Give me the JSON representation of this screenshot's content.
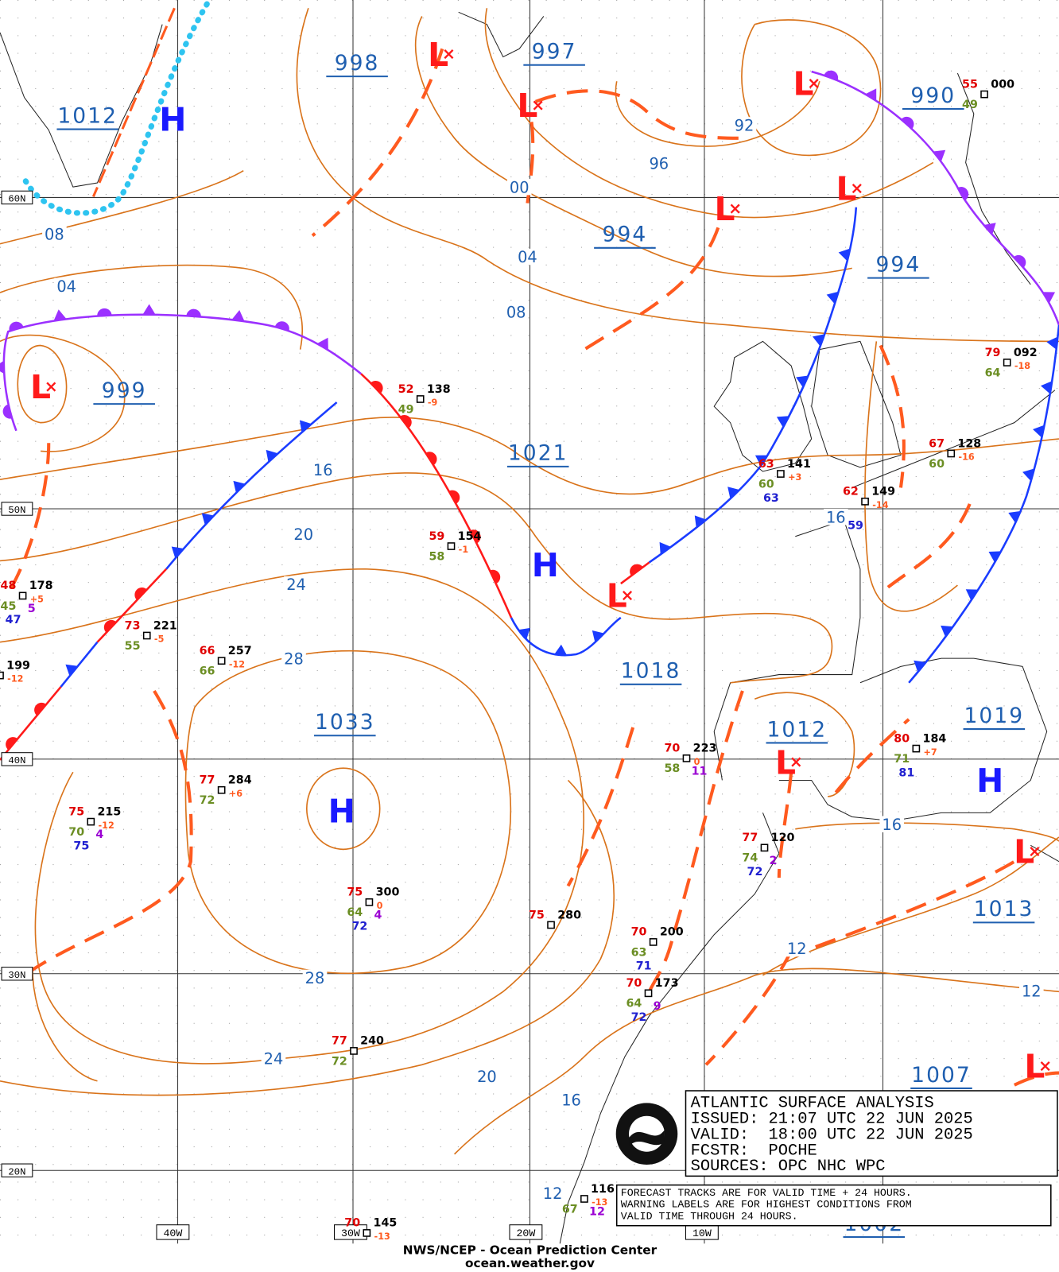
{
  "lat_labels": [
    "60N",
    "50N",
    "40N",
    "30N",
    "20N"
  ],
  "lon_labels": [
    "40W",
    "30W",
    "20W",
    "10W"
  ],
  "center_labels": [
    "1012",
    "998",
    "997",
    "990",
    "994",
    "994",
    "999",
    "1021",
    "1018",
    "1033",
    "1012",
    "1019",
    "1013",
    "1007",
    "1002"
  ],
  "symbols": [
    "H",
    "H",
    "H",
    "H",
    "L",
    "L",
    "L",
    "L",
    "L",
    "L",
    "L",
    "L",
    "L",
    "L"
  ],
  "isobar_labels": [
    "08",
    "04",
    "00",
    "04",
    "08",
    "92",
    "96",
    "16",
    "20",
    "24",
    "28",
    "28",
    "24",
    "20",
    "16",
    "12",
    "16",
    "16",
    "12",
    "12"
  ],
  "stations": [
    {
      "temp": "52",
      "pressure": "138",
      "tendency": "-9",
      "dewpoint": "49"
    },
    {
      "temp": "59",
      "pressure": "154",
      "tendency": "-1",
      "dewpoint": "58"
    },
    {
      "temp": "48",
      "pressure": "178",
      "tendency": "+5",
      "dewpoint": "45",
      "extra": "5",
      "sst": "47"
    },
    {
      "temp": "73",
      "pressure": "221",
      "tendency": "-5",
      "dewpoint": "55"
    },
    {
      "temp": "66",
      "pressure": "257",
      "tendency": "-12",
      "dewpoint": "66"
    },
    {
      "pressure": "199",
      "tendency": "-12"
    },
    {
      "temp": "77",
      "pressure": "284",
      "tendency": "+6",
      "dewpoint": "72"
    },
    {
      "temp": "75",
      "pressure": "215",
      "tendency": "-12",
      "dewpoint": "70",
      "extra": "4",
      "sst": "75"
    },
    {
      "temp": "75",
      "pressure": "300",
      "tendency": "0",
      "dewpoint": "64",
      "extra": "4",
      "sst": "72"
    },
    {
      "temp": "75",
      "pressure": "280"
    },
    {
      "temp": "70",
      "pressure": "200",
      "dewpoint": "63",
      "sst": "71"
    },
    {
      "temp": "70",
      "pressure": "173",
      "dewpoint": "64",
      "extra": "9",
      "sst": "72"
    },
    {
      "temp": "77",
      "pressure": "240",
      "dewpoint": "72"
    },
    {
      "temp": "70",
      "pressure": "145",
      "tendency": "-13"
    },
    {
      "pressure": "116",
      "tendency": "-13",
      "dewpoint": "67",
      "extra": "12"
    },
    {
      "temp": "70",
      "pressure": "223",
      "tendency": "0",
      "dewpoint": "58",
      "extra": "11"
    },
    {
      "temp": "77",
      "pressure": "120",
      "dewpoint": "74",
      "extra": "2",
      "sst": "72"
    },
    {
      "temp": "80",
      "pressure": "184",
      "tendency": "+7",
      "dewpoint": "71",
      "sst": "81"
    },
    {
      "temp": "63",
      "pressure": "141",
      "tendency": "+3",
      "dewpoint": "60",
      "sst": "63"
    },
    {
      "temp": "62",
      "pressure": "149",
      "tendency": "-14",
      "sst": "59"
    },
    {
      "temp": "67",
      "pressure": "128",
      "tendency": "-16",
      "dewpoint": "60"
    },
    {
      "temp": "79",
      "pressure": "092",
      "tendency": "-18",
      "dewpoint": "64"
    },
    {
      "temp": "55",
      "pressure": "000",
      "dewpoint": "49"
    }
  ],
  "info_box": [
    "ATLANTIC SURFACE ANALYSIS",
    "ISSUED: 21:07 UTC 22 JUN 2025",
    "VALID:  18:00 UTC 22 JUN 2025",
    "FCSTR:  POCHE",
    "SOURCES: OPC NHC WPC"
  ],
  "warning_box": [
    "FORECAST TRACKS ARE FOR VALID TIME + 24 HOURS.",
    "WARNING LABELS ARE FOR HIGHEST CONDITIONS FROM",
    "VALID TIME THROUGH 24 HOURS."
  ],
  "footer": [
    "NWS/NCEP - Ocean Prediction Center",
    "ocean.weather.gov"
  ]
}
